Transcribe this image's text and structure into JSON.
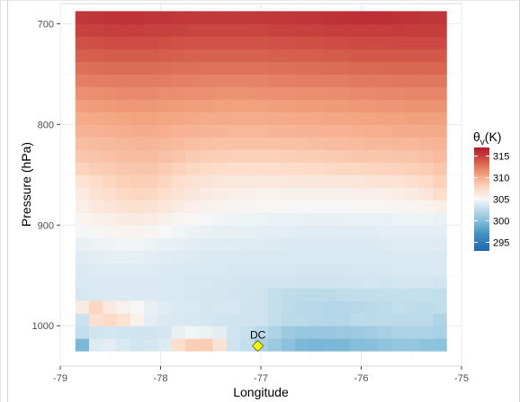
{
  "chart_data": {
    "type": "heatmap",
    "xlabel": "Longitude",
    "ylabel": "Pressure (hPa)",
    "xlim": [
      -79,
      -75
    ],
    "ylim": [
      1040,
      680
    ],
    "y_reversed": true,
    "x_ticks": [
      -79,
      -78,
      -77,
      -76,
      -75
    ],
    "x_tick_labels": [
      "-79",
      "-78",
      "-77",
      "-76",
      "-75"
    ],
    "y_ticks": [
      700,
      800,
      900,
      1000
    ],
    "y_tick_labels": [
      "700",
      "800",
      "900",
      "1000"
    ],
    "grid": true,
    "legend": {
      "title_main": "θ",
      "title_sub": "v",
      "title_unit": "(K)",
      "placement": "right",
      "ticks": [
        295,
        300,
        305,
        310,
        315
      ],
      "tick_labels": [
        "295",
        "300",
        "305",
        "310",
        "315"
      ],
      "range": [
        293,
        317
      ]
    },
    "colorscale": {
      "stops": [
        {
          "v": 293,
          "c": "#2166ac"
        },
        {
          "v": 297,
          "c": "#4393c3"
        },
        {
          "v": 300.5,
          "c": "#92c5de"
        },
        {
          "v": 303.5,
          "c": "#d1e5f0"
        },
        {
          "v": 305,
          "c": "#f7f7f7"
        },
        {
          "v": 307.5,
          "c": "#fddbc7"
        },
        {
          "v": 310.5,
          "c": "#f4a582"
        },
        {
          "v": 313.5,
          "c": "#d6604d"
        },
        {
          "v": 317,
          "c": "#b2182b"
        }
      ]
    },
    "cell_bounds": {
      "lon": [
        -78.85,
        -75.15
      ],
      "pressure": [
        1025,
        687.5
      ]
    },
    "levels": [
      1025,
      1012.5,
      1000,
      987.5,
      975,
      962.5,
      950,
      937.5,
      925,
      912.5,
      900,
      887.5,
      875,
      862.5,
      850,
      837.5,
      825,
      812.5,
      800,
      787.5,
      775,
      762.5,
      750,
      737.5,
      725,
      712.5,
      700
    ],
    "ncols": 27,
    "rows": [
      [
        299.5,
        304.0,
        304.2,
        303.8,
        303.5,
        303.6,
        304.0,
        307.3,
        308.2,
        308.3,
        306.8,
        303.3,
        302.9,
        301.5,
        300.9,
        300.2,
        299.6,
        299.4,
        299.5,
        299.6,
        300.0,
        300.1,
        300.4,
        300.6,
        300.6,
        300.4,
        300.3
      ],
      [
        302.8,
        303.4,
        303.6,
        303.5,
        303.4,
        303.4,
        303.6,
        304.4,
        304.8,
        304.5,
        304.2,
        303.5,
        303.0,
        302.5,
        301.8,
        301.0,
        300.8,
        300.8,
        300.8,
        300.9,
        301.0,
        301.2,
        301.5,
        301.7,
        301.8,
        301.8,
        301.6
      ],
      [
        303.2,
        307.1,
        307.5,
        306.9,
        305.6,
        304.2,
        303.9,
        303.8,
        303.7,
        303.6,
        303.5,
        303.4,
        303.4,
        303.3,
        302.8,
        302.5,
        302.4,
        302.3,
        302.1,
        302.2,
        302.6,
        302.5,
        302.5,
        302.5,
        302.5,
        302.5,
        301.9
      ],
      [
        306.1,
        307.8,
        306.2,
        305.5,
        305.0,
        304.4,
        304.1,
        303.9,
        303.8,
        303.6,
        303.7,
        303.7,
        303.4,
        303.4,
        302.9,
        302.6,
        302.3,
        302.3,
        302.1,
        302.1,
        302.3,
        302.4,
        302.6,
        302.8,
        302.7,
        302.6,
        302.8
      ],
      [
        303.7,
        303.8,
        303.9,
        303.9,
        303.9,
        303.9,
        303.8,
        303.8,
        303.7,
        303.6,
        303.6,
        303.5,
        303.5,
        303.4,
        302.9,
        302.7,
        302.6,
        302.6,
        302.5,
        302.7,
        302.8,
        302.8,
        302.9,
        302.9,
        302.9,
        302.9,
        302.8
      ],
      [
        303.8,
        303.9,
        303.9,
        303.9,
        303.9,
        303.9,
        303.8,
        303.8,
        303.7,
        303.7,
        303.6,
        303.6,
        303.5,
        303.5,
        303.5,
        303.5,
        303.4,
        303.4,
        303.4,
        303.5,
        303.5,
        303.6,
        303.5,
        303.6,
        303.6,
        303.6,
        303.5
      ],
      [
        303.9,
        304.0,
        304.0,
        304.0,
        304.0,
        304.0,
        303.9,
        303.9,
        303.8,
        303.8,
        303.8,
        303.7,
        303.7,
        303.7,
        303.7,
        303.7,
        303.6,
        303.6,
        303.6,
        303.6,
        303.7,
        303.7,
        303.7,
        303.8,
        303.8,
        303.8,
        303.8
      ],
      [
        304.1,
        304.2,
        304.3,
        304.3,
        304.3,
        304.2,
        304.1,
        304.0,
        304.0,
        303.9,
        303.9,
        303.9,
        303.8,
        303.8,
        303.8,
        303.8,
        303.8,
        303.8,
        303.8,
        303.8,
        303.8,
        303.8,
        303.8,
        303.9,
        303.9,
        303.9,
        303.8
      ],
      [
        304.4,
        304.6,
        304.7,
        304.8,
        304.8,
        304.6,
        304.4,
        304.3,
        304.2,
        304.1,
        304.1,
        304.1,
        304.0,
        304.0,
        304.0,
        303.9,
        303.9,
        303.9,
        303.9,
        303.9,
        303.9,
        303.9,
        304.0,
        304.0,
        304.0,
        304.0,
        304.0
      ],
      [
        304.9,
        305.1,
        305.3,
        305.4,
        305.5,
        305.3,
        305.0,
        304.8,
        304.6,
        304.5,
        304.4,
        304.3,
        304.3,
        304.2,
        304.2,
        304.2,
        304.1,
        304.1,
        304.1,
        304.1,
        304.1,
        304.1,
        304.2,
        304.2,
        304.2,
        304.2,
        304.2
      ],
      [
        305.3,
        305.6,
        305.8,
        306.0,
        306.1,
        306.0,
        305.6,
        305.3,
        305.1,
        304.9,
        304.8,
        304.7,
        304.6,
        304.6,
        304.5,
        304.5,
        304.5,
        304.4,
        304.4,
        304.5,
        304.5,
        304.5,
        304.5,
        304.6,
        304.6,
        304.6,
        304.5
      ],
      [
        305.8,
        306.3,
        306.6,
        306.9,
        307.0,
        306.9,
        306.5,
        306.1,
        305.8,
        305.6,
        305.4,
        305.3,
        305.2,
        305.1,
        305.1,
        305.0,
        305.0,
        305.0,
        305.0,
        305.0,
        305.1,
        305.1,
        305.1,
        305.2,
        305.3,
        305.4,
        305.8
      ],
      [
        306.2,
        306.8,
        307.3,
        307.6,
        307.8,
        307.7,
        307.3,
        306.8,
        306.4,
        306.1,
        305.9,
        305.8,
        305.7,
        305.6,
        305.6,
        305.6,
        305.6,
        305.6,
        305.6,
        305.6,
        305.7,
        305.7,
        305.8,
        305.9,
        306.1,
        306.6,
        307.2
      ],
      [
        306.9,
        307.4,
        307.8,
        308.1,
        308.3,
        308.2,
        307.8,
        307.3,
        306.9,
        306.7,
        306.5,
        306.4,
        306.4,
        306.3,
        306.3,
        306.4,
        306.4,
        306.4,
        306.5,
        306.5,
        306.6,
        306.7,
        306.8,
        306.9,
        307.1,
        307.5,
        308.0
      ],
      [
        307.9,
        308.2,
        308.4,
        308.6,
        308.7,
        308.7,
        308.4,
        308.0,
        307.7,
        307.5,
        307.4,
        307.3,
        307.3,
        307.3,
        307.3,
        307.4,
        307.4,
        307.5,
        307.6,
        307.7,
        307.7,
        307.8,
        307.9,
        308.0,
        308.1,
        308.3,
        308.7
      ],
      [
        308.6,
        308.8,
        309.0,
        309.1,
        309.2,
        309.2,
        309.0,
        308.7,
        308.4,
        308.3,
        308.2,
        308.1,
        308.1,
        308.1,
        308.1,
        308.2,
        308.3,
        308.3,
        308.4,
        308.5,
        308.6,
        308.6,
        308.7,
        308.8,
        308.8,
        309.0,
        309.3
      ],
      [
        309.1,
        309.3,
        309.4,
        309.5,
        309.6,
        309.6,
        309.5,
        309.3,
        309.1,
        309.0,
        308.9,
        308.9,
        308.9,
        308.9,
        308.9,
        309.0,
        309.0,
        309.1,
        309.2,
        309.2,
        309.3,
        309.4,
        309.4,
        309.5,
        309.5,
        309.6,
        309.7
      ],
      [
        309.7,
        309.8,
        309.9,
        310.0,
        310.1,
        310.1,
        310.0,
        309.8,
        309.7,
        309.6,
        309.6,
        309.5,
        309.5,
        309.5,
        309.6,
        309.6,
        309.7,
        309.7,
        309.8,
        309.8,
        309.9,
        310.0,
        310.0,
        310.1,
        310.1,
        310.2,
        310.2
      ],
      [
        310.2,
        310.3,
        310.4,
        310.5,
        310.6,
        310.6,
        310.5,
        310.4,
        310.3,
        310.2,
        310.2,
        310.1,
        310.1,
        310.1,
        310.2,
        310.2,
        310.3,
        310.3,
        310.4,
        310.4,
        310.5,
        310.5,
        310.6,
        310.6,
        310.7,
        310.7,
        310.7
      ],
      [
        310.8,
        310.9,
        311.0,
        311.1,
        311.1,
        311.1,
        311.0,
        310.9,
        310.8,
        310.8,
        310.7,
        310.7,
        310.7,
        310.7,
        310.8,
        310.8,
        310.9,
        310.9,
        311.0,
        311.0,
        311.1,
        311.1,
        311.2,
        311.2,
        311.3,
        311.3,
        311.3
      ],
      [
        311.4,
        311.5,
        311.6,
        311.7,
        311.7,
        311.7,
        311.6,
        311.5,
        311.4,
        311.4,
        311.3,
        311.3,
        311.3,
        311.4,
        311.4,
        311.4,
        311.5,
        311.5,
        311.6,
        311.6,
        311.7,
        311.7,
        311.8,
        311.8,
        311.9,
        311.9,
        311.9
      ],
      [
        312.1,
        312.2,
        312.3,
        312.3,
        312.3,
        312.3,
        312.2,
        312.1,
        312.1,
        312.0,
        312.0,
        312.0,
        312.0,
        312.0,
        312.1,
        312.1,
        312.2,
        312.2,
        312.3,
        312.3,
        312.4,
        312.4,
        312.4,
        312.5,
        312.5,
        312.5,
        312.5
      ],
      [
        312.8,
        312.9,
        313.0,
        313.0,
        313.0,
        313.0,
        312.9,
        312.8,
        312.8,
        312.7,
        312.7,
        312.7,
        312.7,
        312.7,
        312.8,
        312.8,
        312.9,
        312.9,
        313.0,
        313.0,
        313.1,
        313.1,
        313.1,
        313.2,
        313.2,
        313.2,
        313.2
      ],
      [
        313.5,
        313.6,
        313.7,
        313.7,
        313.7,
        313.7,
        313.6,
        313.5,
        313.4,
        313.4,
        313.4,
        313.4,
        313.4,
        313.4,
        313.5,
        313.5,
        313.6,
        313.6,
        313.7,
        313.7,
        313.8,
        313.8,
        313.8,
        313.9,
        313.9,
        313.9,
        313.9
      ],
      [
        314.2,
        314.3,
        314.4,
        314.4,
        314.4,
        314.4,
        314.3,
        314.2,
        314.1,
        314.1,
        314.1,
        314.1,
        314.1,
        314.1,
        314.2,
        314.2,
        314.3,
        314.3,
        314.4,
        314.4,
        314.5,
        314.5,
        314.5,
        314.6,
        314.6,
        314.6,
        314.6
      ],
      [
        314.9,
        315.0,
        315.1,
        315.1,
        315.1,
        315.0,
        315.0,
        314.9,
        314.8,
        314.8,
        314.8,
        314.8,
        314.8,
        314.8,
        314.9,
        314.9,
        315.0,
        315.0,
        315.1,
        315.1,
        315.2,
        315.2,
        315.2,
        315.3,
        315.2,
        315.2,
        315.2
      ],
      [
        315.5,
        315.6,
        315.7,
        315.7,
        315.7,
        315.6,
        315.6,
        315.5,
        315.4,
        315.4,
        315.4,
        315.4,
        315.4,
        315.4,
        315.5,
        315.5,
        315.6,
        315.6,
        315.7,
        315.8,
        315.9,
        316.0,
        315.9,
        315.8,
        315.7,
        315.6,
        315.6
      ]
    ],
    "annotations": [
      {
        "label": "DC",
        "x": -77.03,
        "y": 1020,
        "marker": "diamond",
        "marker_color": "#ffff00"
      }
    ]
  }
}
